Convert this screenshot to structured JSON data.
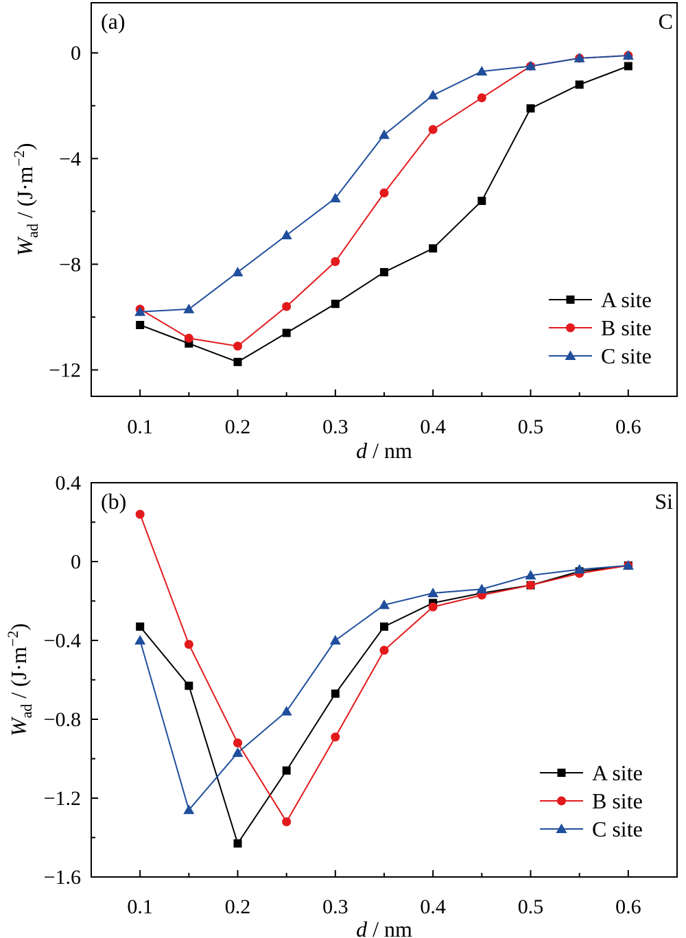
{
  "chart_data": [
    {
      "type": "line",
      "panel_label": "(a)",
      "corner_label": "C",
      "xlabel": {
        "italic": "d",
        "rest": " / nm"
      },
      "ylabel": {
        "main": "W",
        "sub": "ad",
        "rest": " / (J·m",
        "sup": "−2",
        "close": ")"
      },
      "x": [
        0.1,
        0.15,
        0.2,
        0.25,
        0.3,
        0.35,
        0.4,
        0.45,
        0.5,
        0.55,
        0.6
      ],
      "xlim": [
        0.05,
        0.65
      ],
      "ylim": [
        -13,
        1.9
      ],
      "xticks": [
        0.1,
        0.2,
        0.3,
        0.4,
        0.5,
        0.6
      ],
      "xtick_labels": [
        "0.1",
        "0.2",
        "0.3",
        "0.4",
        "0.5",
        "0.6"
      ],
      "yticks": [
        0,
        -4,
        -8,
        -12
      ],
      "ytick_labels": [
        "0",
        "−4",
        "−8",
        "−12"
      ],
      "legend_position": "right",
      "series": [
        {
          "name": "A site",
          "marker": "square",
          "color": "#000000",
          "values": [
            -10.3,
            -11.0,
            -11.7,
            -10.6,
            -9.5,
            -8.3,
            -7.4,
            -5.6,
            -2.1,
            -1.2,
            -0.5
          ]
        },
        {
          "name": "B site",
          "marker": "circle",
          "color": "#e31a1c",
          "values": [
            -9.7,
            -10.8,
            -11.1,
            -9.6,
            -7.9,
            -5.3,
            -2.9,
            -1.7,
            -0.5,
            -0.2,
            -0.1
          ]
        },
        {
          "name": "C site",
          "marker": "triangle",
          "color": "#1f4e9c",
          "values": [
            -9.8,
            -9.7,
            -8.3,
            -6.9,
            -5.5,
            -3.1,
            -1.6,
            -0.7,
            -0.5,
            -0.2,
            -0.1
          ]
        }
      ]
    },
    {
      "type": "line",
      "panel_label": "(b)",
      "corner_label": "Si",
      "xlabel": {
        "italic": "d",
        "rest": " / nm"
      },
      "ylabel": {
        "main": "W",
        "sub": "ad",
        "rest": " / (J·m",
        "sup": "−2",
        "close": ")"
      },
      "x": [
        0.1,
        0.15,
        0.2,
        0.25,
        0.3,
        0.35,
        0.4,
        0.45,
        0.5,
        0.55,
        0.6
      ],
      "xlim": [
        0.05,
        0.65
      ],
      "ylim": [
        -1.6,
        0.4
      ],
      "xticks": [
        0.1,
        0.2,
        0.3,
        0.4,
        0.5,
        0.6
      ],
      "xtick_labels": [
        "0.1",
        "0.2",
        "0.3",
        "0.4",
        "0.5",
        "0.6"
      ],
      "yticks": [
        0.4,
        0,
        -0.4,
        -0.8,
        -1.2,
        -1.6
      ],
      "ytick_labels": [
        "0.4",
        "0",
        "−0.4",
        "−0.8",
        "−1.2",
        "−1.6"
      ],
      "legend_position": "bottom-right",
      "series": [
        {
          "name": "A site",
          "marker": "square",
          "color": "#000000",
          "values": [
            -0.33,
            -0.63,
            -1.43,
            -1.06,
            -0.67,
            -0.33,
            -0.21,
            -0.16,
            -0.12,
            -0.05,
            -0.02
          ]
        },
        {
          "name": "B site",
          "marker": "circle",
          "color": "#e31a1c",
          "values": [
            0.24,
            -0.42,
            -0.92,
            -1.32,
            -0.89,
            -0.45,
            -0.23,
            -0.17,
            -0.12,
            -0.06,
            -0.02
          ]
        },
        {
          "name": "C site",
          "marker": "triangle",
          "color": "#1f4e9c",
          "values": [
            -0.4,
            -1.26,
            -0.97,
            -0.76,
            -0.4,
            -0.22,
            -0.16,
            -0.14,
            -0.07,
            -0.04,
            -0.02
          ]
        }
      ]
    }
  ]
}
